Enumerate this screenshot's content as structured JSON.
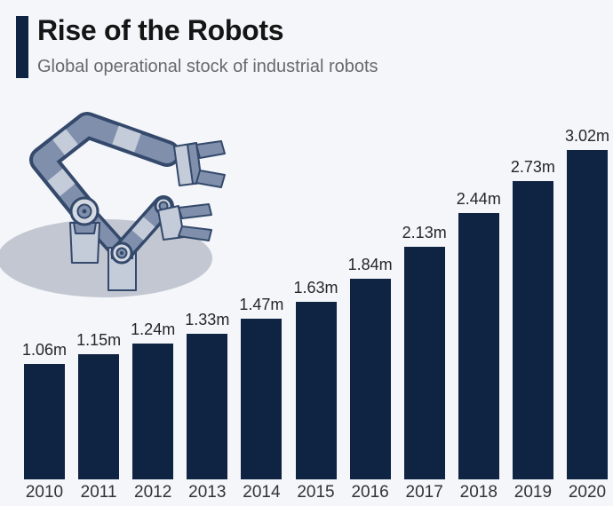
{
  "header": {
    "title": "Rise of the Robots",
    "subtitle": "Global operational stock of industrial robots"
  },
  "illustration": {
    "name": "industrial-robot-arms-with-shadow"
  },
  "colors": {
    "background": "#f4f6fa",
    "bar": "#0f2443",
    "title": "#151515",
    "subtitle": "#67696d",
    "value_label": "#262626",
    "year_label": "#333333",
    "robot_outline": "#34496b",
    "robot_mid": "#8090ac",
    "robot_light": "#c4cbd9",
    "robot_shadow": "#c2c7d1"
  },
  "chart_data": {
    "type": "bar",
    "title": "Rise of the Robots",
    "subtitle": "Global operational stock of industrial robots",
    "categories": [
      "2010",
      "2011",
      "2012",
      "2013",
      "2014",
      "2015",
      "2016",
      "2017",
      "2018",
      "2019",
      "2020"
    ],
    "values": [
      1.06,
      1.15,
      1.24,
      1.33,
      1.47,
      1.63,
      1.84,
      2.13,
      2.44,
      2.73,
      3.02
    ],
    "value_labels": [
      "1.06m",
      "1.15m",
      "1.24m",
      "1.33m",
      "1.47m",
      "1.63m",
      "1.84m",
      "2.13m",
      "2.44m",
      "2.73m",
      "3.02m"
    ],
    "unit_suffix": "m",
    "xlabel": "",
    "ylabel": "",
    "ylim": [
      0,
      3.02
    ],
    "grid": false,
    "legend": false,
    "axes_shown": false
  }
}
